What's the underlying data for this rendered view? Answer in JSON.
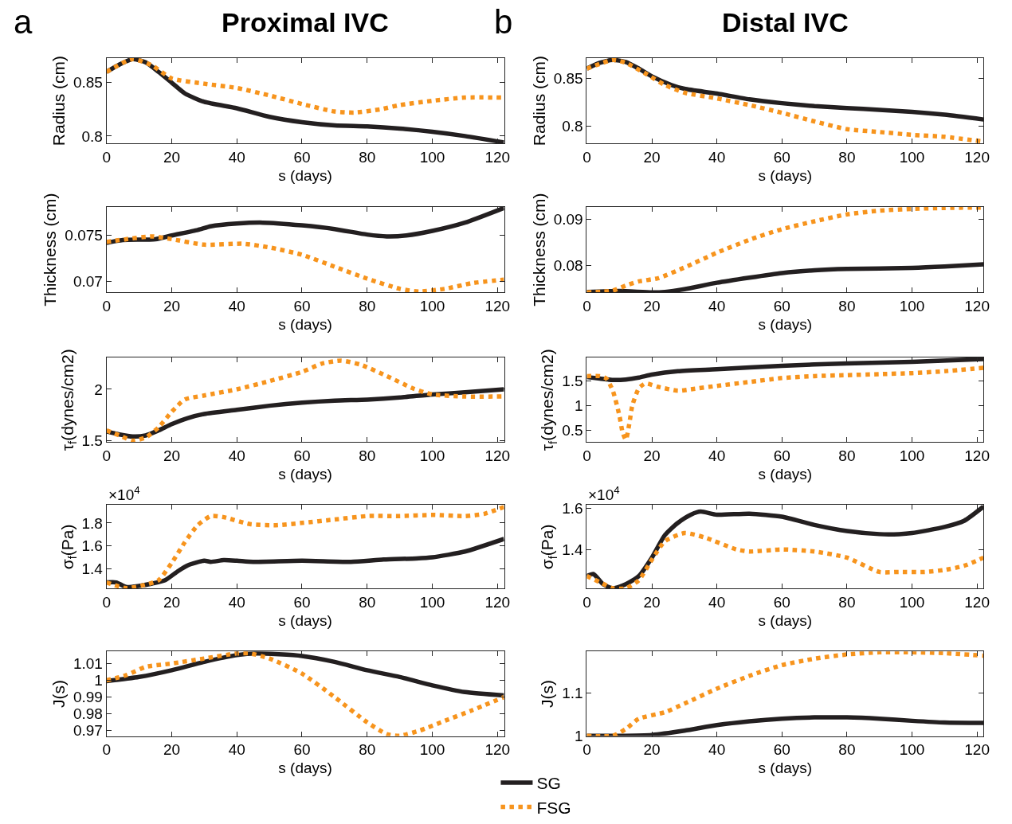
{
  "chart_data": [
    {
      "type": "line",
      "title": "Proximal IVC",
      "annotations": [
        "a"
      ],
      "xlabel": "s (days)",
      "ylabel": "Radius (cm)",
      "xlim": [
        0,
        122
      ],
      "xticks": [
        0,
        20,
        40,
        60,
        80,
        100,
        120
      ],
      "ylim": [
        0.793,
        0.873
      ],
      "yticks": [
        0.8,
        0.85
      ],
      "grid": false,
      "legend": "bottom",
      "series": [
        {
          "name": "SG",
          "color": "#231f20",
          "line_style": "solid",
          "x": [
            0,
            4,
            8,
            12,
            16,
            20,
            24,
            30,
            40,
            50,
            60,
            70,
            80,
            90,
            100,
            110,
            122
          ],
          "values": [
            0.86,
            0.867,
            0.872,
            0.869,
            0.86,
            0.85,
            0.84,
            0.832,
            0.826,
            0.818,
            0.813,
            0.81,
            0.809,
            0.807,
            0.804,
            0.8,
            0.794
          ]
        },
        {
          "name": "FSG",
          "color": "#f7941d",
          "line_style": "dotted",
          "x": [
            0,
            8,
            14,
            20,
            30,
            40,
            50,
            60,
            70,
            76,
            84,
            90,
            100,
            110,
            122
          ],
          "values": [
            0.86,
            0.872,
            0.866,
            0.854,
            0.849,
            0.845,
            0.838,
            0.83,
            0.823,
            0.822,
            0.825,
            0.829,
            0.833,
            0.836,
            0.836
          ]
        }
      ]
    },
    {
      "type": "line",
      "title": "Distal IVC",
      "annotations": [
        "b"
      ],
      "xlabel": "s (days)",
      "ylabel": "Radius (cm)",
      "xlim": [
        0,
        122
      ],
      "xticks": [
        0,
        20,
        40,
        60,
        80,
        100,
        120
      ],
      "ylim": [
        0.782,
        0.871
      ],
      "yticks": [
        0.8,
        0.85
      ],
      "grid": false,
      "series": [
        {
          "color": "#231f20",
          "line_style": "solid",
          "x": [
            0,
            4,
            8,
            12,
            16,
            20,
            26,
            30,
            40,
            50,
            60,
            70,
            80,
            90,
            100,
            110,
            122
          ],
          "values": [
            0.86,
            0.866,
            0.869,
            0.867,
            0.86,
            0.852,
            0.843,
            0.839,
            0.834,
            0.828,
            0.824,
            0.821,
            0.819,
            0.817,
            0.815,
            0.812,
            0.807
          ]
        },
        {
          "color": "#f7941d",
          "line_style": "dotted",
          "x": [
            0,
            8,
            12,
            18,
            24,
            30,
            40,
            50,
            60,
            70,
            80,
            90,
            100,
            110,
            122
          ],
          "values": [
            0.86,
            0.869,
            0.866,
            0.855,
            0.843,
            0.835,
            0.829,
            0.822,
            0.814,
            0.805,
            0.797,
            0.794,
            0.791,
            0.789,
            0.784
          ]
        }
      ]
    },
    {
      "type": "line",
      "xlabel": "s (days)",
      "ylabel": "Thickness (cm)",
      "xlim": [
        0,
        122
      ],
      "xticks": [
        0,
        20,
        40,
        60,
        80,
        100,
        120
      ],
      "ylim": [
        0.0688,
        0.0781
      ],
      "yticks": [
        0.07,
        0.075
      ],
      "grid": false,
      "series": [
        {
          "color": "#231f20",
          "line_style": "solid",
          "x": [
            0,
            5,
            15,
            20,
            28,
            32,
            40,
            48,
            60,
            70,
            80,
            86,
            92,
            100,
            110,
            122
          ],
          "values": [
            0.0742,
            0.0745,
            0.0746,
            0.075,
            0.0756,
            0.076,
            0.0763,
            0.0764,
            0.0761,
            0.0757,
            0.0751,
            0.0749,
            0.075,
            0.0755,
            0.0764,
            0.078
          ]
        },
        {
          "color": "#f7941d",
          "line_style": "dotted",
          "x": [
            0,
            6,
            14,
            20,
            30,
            42,
            50,
            60,
            70,
            80,
            90,
            96,
            104,
            112,
            122
          ],
          "values": [
            0.0743,
            0.0746,
            0.0749,
            0.0746,
            0.074,
            0.0741,
            0.0737,
            0.0729,
            0.0716,
            0.0703,
            0.0692,
            0.0689,
            0.0692,
            0.0698,
            0.0702
          ]
        }
      ]
    },
    {
      "type": "line",
      "xlabel": "s (days)",
      "ylabel": "Thickness (cm)",
      "xlim": [
        0,
        122
      ],
      "xticks": [
        0,
        20,
        40,
        60,
        80,
        100,
        120
      ],
      "ylim": [
        0.0741,
        0.0926
      ],
      "yticks": [
        0.08,
        0.09
      ],
      "grid": false,
      "series": [
        {
          "color": "#231f20",
          "line_style": "solid",
          "x": [
            0,
            10,
            20,
            24,
            30,
            40,
            50,
            60,
            70,
            80,
            100,
            110,
            122
          ],
          "values": [
            0.0742,
            0.0744,
            0.0741,
            0.0742,
            0.0748,
            0.0762,
            0.0773,
            0.0783,
            0.0789,
            0.0792,
            0.0794,
            0.0797,
            0.0802
          ]
        },
        {
          "color": "#f7941d",
          "line_style": "dotted",
          "x": [
            0,
            8,
            12,
            16,
            22,
            30,
            40,
            50,
            60,
            70,
            80,
            90,
            100,
            110,
            122
          ],
          "values": [
            0.0741,
            0.0745,
            0.0756,
            0.0765,
            0.0772,
            0.0795,
            0.0827,
            0.0855,
            0.0878,
            0.0895,
            0.091,
            0.0918,
            0.0922,
            0.0924,
            0.0925
          ]
        }
      ]
    },
    {
      "type": "line",
      "xlabel": "s (days)",
      "ylabel": "τ$_{f}$(dynes/cm2)",
      "xlim": [
        0,
        122
      ],
      "xticks": [
        0,
        20,
        40,
        60,
        80,
        100,
        120
      ],
      "ylim": [
        1.485,
        2.31
      ],
      "yticks": [
        1.5,
        2
      ],
      "grid": false,
      "series": [
        {
          "color": "#231f20",
          "line_style": "solid",
          "x": [
            0,
            4,
            8,
            12,
            16,
            20,
            25,
            30,
            40,
            50,
            60,
            70,
            80,
            90,
            100,
            110,
            122
          ],
          "values": [
            1.59,
            1.56,
            1.54,
            1.55,
            1.6,
            1.66,
            1.72,
            1.76,
            1.8,
            1.84,
            1.87,
            1.89,
            1.9,
            1.92,
            1.95,
            1.97,
            2.0
          ]
        },
        {
          "color": "#f7941d",
          "line_style": "dotted",
          "x": [
            0,
            4,
            8,
            12,
            16,
            20,
            24,
            30,
            40,
            50,
            60,
            66,
            72,
            78,
            86,
            94,
            100,
            110,
            122
          ],
          "values": [
            1.6,
            1.55,
            1.5,
            1.53,
            1.63,
            1.78,
            1.9,
            1.94,
            2.0,
            2.08,
            2.17,
            2.25,
            2.28,
            2.24,
            2.13,
            2.01,
            1.95,
            1.93,
            1.93
          ]
        }
      ]
    },
    {
      "type": "line",
      "xlabel": "s (days)",
      "ylabel": "τ$_{f}$(dynes/cm2)",
      "xlim": [
        0,
        122
      ],
      "xticks": [
        0,
        20,
        40,
        60,
        80,
        100,
        120
      ],
      "ylim": [
        0.25,
        1.98
      ],
      "yticks": [
        0.5,
        1,
        1.5
      ],
      "grid": false,
      "series": [
        {
          "color": "#231f20",
          "line_style": "solid",
          "x": [
            0,
            4,
            8,
            12,
            16,
            20,
            28,
            40,
            60,
            80,
            100,
            122
          ],
          "values": [
            1.58,
            1.55,
            1.52,
            1.53,
            1.57,
            1.63,
            1.7,
            1.74,
            1.81,
            1.86,
            1.89,
            1.95
          ]
        },
        {
          "color": "#f7941d",
          "line_style": "dotted",
          "x": [
            0,
            4,
            6,
            8,
            10,
            11,
            12,
            13,
            14,
            16,
            18,
            22,
            28,
            32,
            40,
            50,
            60,
            70,
            80,
            90,
            100,
            110,
            122
          ],
          "values": [
            1.6,
            1.6,
            1.55,
            1.3,
            0.8,
            0.45,
            0.3,
            0.6,
            1.0,
            1.35,
            1.45,
            1.38,
            1.3,
            1.33,
            1.4,
            1.48,
            1.56,
            1.6,
            1.62,
            1.64,
            1.66,
            1.7,
            1.77
          ]
        }
      ]
    },
    {
      "type": "line",
      "annotations": [
        "×10$^{4}$"
      ],
      "xlabel": "s (days)",
      "ylabel": "σ$_{f}$(Pa)",
      "xlim": [
        0,
        122
      ],
      "xticks": [
        0,
        20,
        40,
        60,
        80,
        100,
        120
      ],
      "ylim": [
        1.225,
        1.958
      ],
      "yticks": [
        1.4,
        1.6,
        1.8
      ],
      "grid": false,
      "series": [
        {
          "color": "#231f20",
          "line_style": "solid",
          "x": [
            0,
            3,
            6,
            10,
            14,
            18,
            22,
            25,
            30,
            32,
            36,
            40,
            45,
            60,
            75,
            85,
            95,
            100,
            110,
            122
          ],
          "values": [
            1.28,
            1.28,
            1.24,
            1.25,
            1.27,
            1.3,
            1.38,
            1.43,
            1.47,
            1.46,
            1.475,
            1.47,
            1.46,
            1.47,
            1.46,
            1.48,
            1.49,
            1.5,
            1.55,
            1.66
          ]
        },
        {
          "color": "#f7941d",
          "line_style": "dotted",
          "x": [
            0,
            6,
            12,
            16,
            20,
            24,
            28,
            32,
            36,
            44,
            52,
            60,
            70,
            80,
            90,
            100,
            110,
            116,
            122
          ],
          "values": [
            1.28,
            1.23,
            1.26,
            1.3,
            1.45,
            1.63,
            1.78,
            1.86,
            1.85,
            1.79,
            1.78,
            1.8,
            1.83,
            1.86,
            1.86,
            1.87,
            1.86,
            1.88,
            1.94
          ]
        }
      ]
    },
    {
      "type": "line",
      "annotations": [
        "×10$^{4}$"
      ],
      "xlabel": "s (days)",
      "ylabel": "σ$_{f}$(Pa)",
      "xlim": [
        0,
        122
      ],
      "xticks": [
        0,
        20,
        40,
        60,
        80,
        100,
        120
      ],
      "ylim": [
        1.208,
        1.618
      ],
      "yticks": [
        1.4,
        1.6
      ],
      "grid": false,
      "series": [
        {
          "color": "#231f20",
          "line_style": "solid",
          "x": [
            0,
            2,
            5,
            8,
            12,
            16,
            20,
            24,
            28,
            32,
            35,
            40,
            50,
            60,
            70,
            80,
            90,
            96,
            100,
            110,
            116,
            122
          ],
          "values": [
            1.27,
            1.28,
            1.23,
            1.21,
            1.23,
            1.27,
            1.36,
            1.47,
            1.53,
            1.57,
            1.585,
            1.57,
            1.575,
            1.56,
            1.52,
            1.49,
            1.475,
            1.475,
            1.48,
            1.51,
            1.54,
            1.61
          ]
        },
        {
          "color": "#f7941d",
          "line_style": "dotted",
          "x": [
            0,
            4,
            8,
            12,
            16,
            20,
            24,
            30,
            36,
            46,
            50,
            60,
            70,
            80,
            90,
            96,
            104,
            110,
            116,
            122
          ],
          "values": [
            1.27,
            1.24,
            1.21,
            1.21,
            1.25,
            1.35,
            1.44,
            1.48,
            1.46,
            1.4,
            1.39,
            1.4,
            1.39,
            1.36,
            1.29,
            1.29,
            1.29,
            1.3,
            1.32,
            1.36
          ]
        }
      ]
    },
    {
      "type": "line",
      "xlabel": "s (days)",
      "ylabel": "J(s)",
      "xlim": [
        0,
        122
      ],
      "xticks": [
        0,
        20,
        40,
        60,
        80,
        100,
        120
      ],
      "ylim": [
        0.9668,
        1.0172
      ],
      "yticks": [
        0.97,
        0.98,
        0.99,
        1,
        1.01
      ],
      "grid": false,
      "series": [
        {
          "color": "#231f20",
          "line_style": "solid",
          "x": [
            0,
            10,
            20,
            30,
            40,
            46,
            60,
            70,
            80,
            90,
            100,
            110,
            122
          ],
          "values": [
            0.9995,
            1.002,
            1.006,
            1.011,
            1.015,
            1.016,
            1.0145,
            1.011,
            1.006,
            1.002,
            0.997,
            0.993,
            0.991
          ]
        },
        {
          "color": "#f7941d",
          "line_style": "dotted",
          "x": [
            0,
            6,
            12,
            20,
            30,
            40,
            44,
            50,
            60,
            70,
            80,
            86,
            90,
            96,
            104,
            112,
            122
          ],
          "values": [
            1.0,
            1.003,
            1.008,
            1.01,
            1.013,
            1.016,
            1.016,
            1.013,
            1.004,
            0.99,
            0.975,
            0.968,
            0.967,
            0.97,
            0.976,
            0.982,
            0.99
          ]
        }
      ]
    },
    {
      "type": "line",
      "xlabel": "s (days)",
      "ylabel": "J(s)",
      "xlim": [
        0,
        122
      ],
      "xticks": [
        0,
        20,
        40,
        60,
        80,
        100,
        120
      ],
      "ylim": [
        0.9993,
        1.197
      ],
      "yticks": [
        1,
        1.1
      ],
      "grid": false,
      "series": [
        {
          "color": "#231f20",
          "line_style": "solid",
          "x": [
            0,
            10,
            20,
            30,
            40,
            50,
            60,
            70,
            80,
            90,
            100,
            110,
            122
          ],
          "values": [
            1.0,
            1.0,
            1.002,
            1.012,
            1.025,
            1.034,
            1.04,
            1.043,
            1.043,
            1.04,
            1.035,
            1.031,
            1.03
          ]
        },
        {
          "color": "#f7941d",
          "line_style": "dotted",
          "x": [
            0,
            8,
            12,
            16,
            24,
            30,
            40,
            50,
            60,
            70,
            80,
            90,
            100,
            110,
            122
          ],
          "values": [
            1.0,
            1.0,
            1.016,
            1.04,
            1.055,
            1.075,
            1.11,
            1.14,
            1.165,
            1.18,
            1.19,
            1.195,
            1.195,
            1.193,
            1.187
          ]
        }
      ]
    }
  ]
}
